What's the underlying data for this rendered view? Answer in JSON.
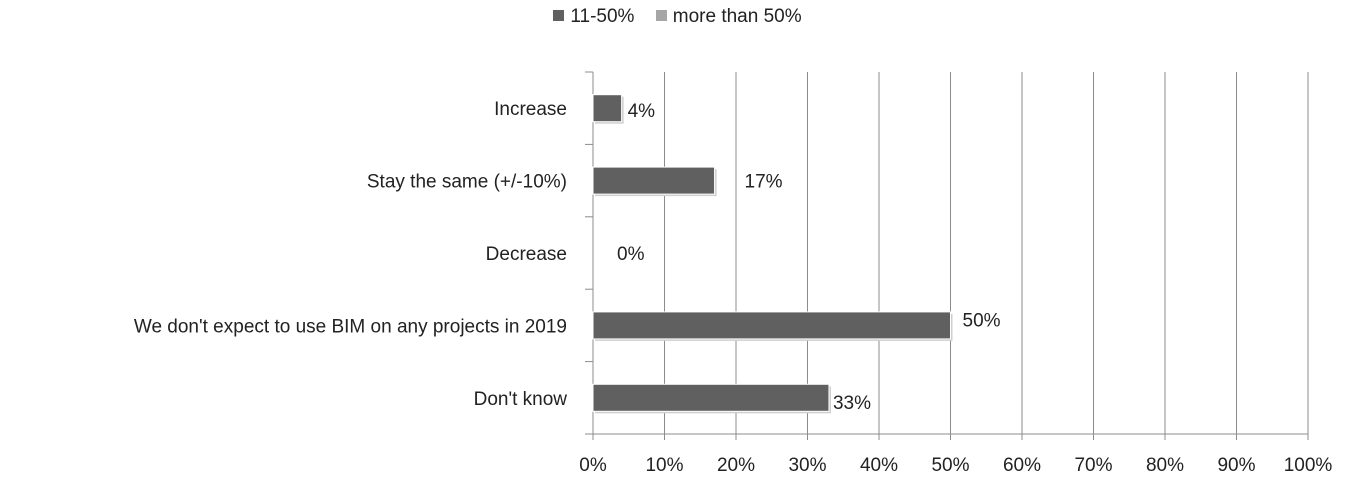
{
  "chart_data": {
    "type": "bar",
    "orientation": "horizontal",
    "categories": [
      "Increase",
      "Stay the same (+/-10%)",
      "Decrease",
      "We don't expect to use BIM on any projects in 2019",
      "Don't know"
    ],
    "series": [
      {
        "name": "11-50%",
        "color": "#606060",
        "values": [
          4,
          17,
          0,
          50,
          33
        ]
      },
      {
        "name": "more than 50%",
        "color": "#a6a6a6",
        "values": [
          0,
          0,
          0,
          0,
          0
        ]
      }
    ],
    "data_labels": [
      "4%",
      "17%",
      "0%",
      "50%",
      "33%"
    ],
    "xlim": [
      0,
      100
    ],
    "xticks": [
      "0%",
      "10%",
      "20%",
      "30%",
      "40%",
      "50%",
      "60%",
      "70%",
      "80%",
      "90%",
      "100%"
    ],
    "grid": true,
    "legend": "top-center"
  }
}
